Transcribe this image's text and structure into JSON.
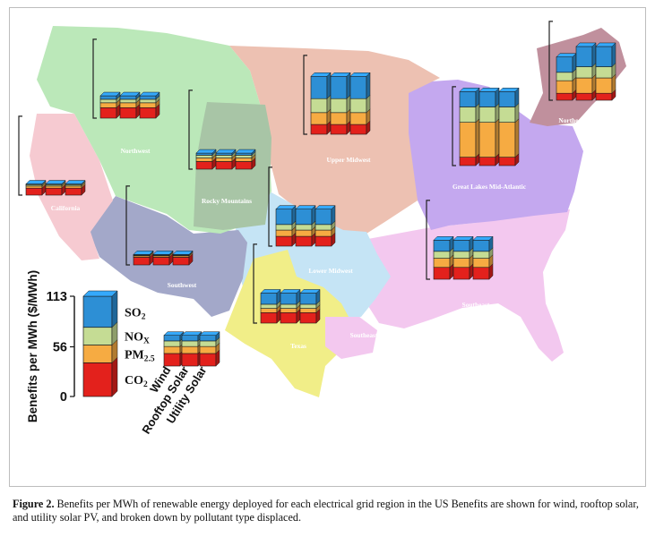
{
  "caption": {
    "label": "Figure 2.",
    "text": "Benefits per MWh of renewable energy deployed for each electrical grid region in the US Benefits are shown for wind, rooftop solar, and utility solar PV, and broken down by pollutant type displaced."
  },
  "colors": {
    "SO2": "#2d8fd5",
    "NOx": "#c5dc94",
    "PM2.5": "#f6ab42",
    "CO2": "#e3211c"
  },
  "chart_data": {
    "type": "bar",
    "stacked": true,
    "title": "",
    "ylabel": "Benefits per MWh ($/MWh)",
    "ylim": [
      0,
      113
    ],
    "yticks": [
      0,
      56,
      113
    ],
    "categories": [
      "Wind",
      "Rooftop Solar",
      "Utility Solar"
    ],
    "stack_order": [
      "CO2",
      "PM2.5",
      "NOx",
      "SO2"
    ],
    "legend": [
      {
        "key": "SO2",
        "base": "SO",
        "sub": "2"
      },
      {
        "key": "NOx",
        "base": "NO",
        "sub": "X"
      },
      {
        "key": "PM2.5",
        "base": "PM",
        "sub": "2.5"
      },
      {
        "key": "CO2",
        "base": "CO",
        "sub": "2"
      }
    ],
    "legend_example": {
      "CO2": 38,
      "PM2.5": 20,
      "NOx": 20,
      "SO2": 35
    },
    "regions": [
      {
        "name": "California",
        "values": {
          "Wind": {
            "CO2": 10,
            "PM2.5": 3,
            "NOx": 2,
            "SO2": 1
          },
          "Rooftop Solar": {
            "CO2": 10,
            "PM2.5": 3,
            "NOx": 2,
            "SO2": 1
          },
          "Utility Solar": {
            "CO2": 10,
            "PM2.5": 3,
            "NOx": 2,
            "SO2": 1
          }
        }
      },
      {
        "name": "Northwest",
        "values": {
          "Wind": {
            "CO2": 15,
            "PM2.5": 7,
            "NOx": 5,
            "SO2": 5
          },
          "Rooftop Solar": {
            "CO2": 15,
            "PM2.5": 7,
            "NOx": 5,
            "SO2": 5
          },
          "Utility Solar": {
            "CO2": 15,
            "PM2.5": 7,
            "NOx": 5,
            "SO2": 5
          }
        }
      },
      {
        "name": "Rocky Mountains",
        "values": {
          "Wind": {
            "CO2": 11,
            "PM2.5": 5,
            "NOx": 4,
            "SO2": 3
          },
          "Rooftop Solar": {
            "CO2": 11,
            "PM2.5": 5,
            "NOx": 4,
            "SO2": 3
          },
          "Utility Solar": {
            "CO2": 11,
            "PM2.5": 5,
            "NOx": 4,
            "SO2": 3
          }
        }
      },
      {
        "name": "Southwest",
        "values": {
          "Wind": {
            "CO2": 11,
            "PM2.5": 2,
            "NOx": 1,
            "SO2": 1
          },
          "Rooftop Solar": {
            "CO2": 11,
            "PM2.5": 2,
            "NOx": 1,
            "SO2": 1
          },
          "Utility Solar": {
            "CO2": 11,
            "PM2.5": 2,
            "NOx": 1,
            "SO2": 1
          }
        }
      },
      {
        "name": "Upper Midwest",
        "values": {
          "Wind": {
            "CO2": 14,
            "PM2.5": 17,
            "NOx": 20,
            "SO2": 32
          },
          "Rooftop Solar": {
            "CO2": 14,
            "PM2.5": 17,
            "NOx": 20,
            "SO2": 32
          },
          "Utility Solar": {
            "CO2": 14,
            "PM2.5": 17,
            "NOx": 20,
            "SO2": 32
          }
        }
      },
      {
        "name": "Lower Midwest",
        "values": {
          "Wind": {
            "CO2": 14,
            "PM2.5": 9,
            "NOx": 8,
            "SO2": 22
          },
          "Rooftop Solar": {
            "CO2": 14,
            "PM2.5": 9,
            "NOx": 8,
            "SO2": 22
          },
          "Utility Solar": {
            "CO2": 14,
            "PM2.5": 9,
            "NOx": 8,
            "SO2": 22
          }
        }
      },
      {
        "name": "Great Lakes Mid-Atlantic",
        "values": {
          "Wind": {
            "CO2": 12,
            "PM2.5": 50,
            "NOx": 22,
            "SO2": 22
          },
          "Rooftop Solar": {
            "CO2": 12,
            "PM2.5": 50,
            "NOx": 22,
            "SO2": 22
          },
          "Utility Solar": {
            "CO2": 12,
            "PM2.5": 50,
            "NOx": 22,
            "SO2": 22
          }
        }
      },
      {
        "name": "Northeast",
        "values": {
          "Wind": {
            "CO2": 10,
            "PM2.5": 18,
            "NOx": 12,
            "SO2": 22
          },
          "Rooftop Solar": {
            "CO2": 10,
            "PM2.5": 22,
            "NOx": 16,
            "SO2": 29
          },
          "Utility Solar": {
            "CO2": 10,
            "PM2.5": 22,
            "NOx": 16,
            "SO2": 29
          }
        }
      },
      {
        "name": "Southeast",
        "values": {
          "Wind": {
            "CO2": 17,
            "PM2.5": 13,
            "NOx": 10,
            "SO2": 16
          },
          "Rooftop Solar": {
            "CO2": 17,
            "PM2.5": 13,
            "NOx": 10,
            "SO2": 16
          },
          "Utility Solar": {
            "CO2": 17,
            "PM2.5": 13,
            "NOx": 10,
            "SO2": 16
          }
        }
      },
      {
        "name": "Texas",
        "values": {
          "Wind": {
            "CO2": 15,
            "PM2.5": 6,
            "NOx": 6,
            "SO2": 16
          },
          "Rooftop Solar": {
            "CO2": 15,
            "PM2.5": 6,
            "NOx": 6,
            "SO2": 16
          },
          "Utility Solar": {
            "CO2": 15,
            "PM2.5": 6,
            "NOx": 6,
            "SO2": 16
          }
        }
      }
    ],
    "map_labels": [
      "Northwest",
      "California",
      "Rocky Mountains",
      "Southwest",
      "Upper Midwest",
      "Lower Midwest",
      "Great Lakes Mid-Atlantic",
      "Northeast",
      "Southeast",
      "Texas",
      "Southeast"
    ]
  }
}
